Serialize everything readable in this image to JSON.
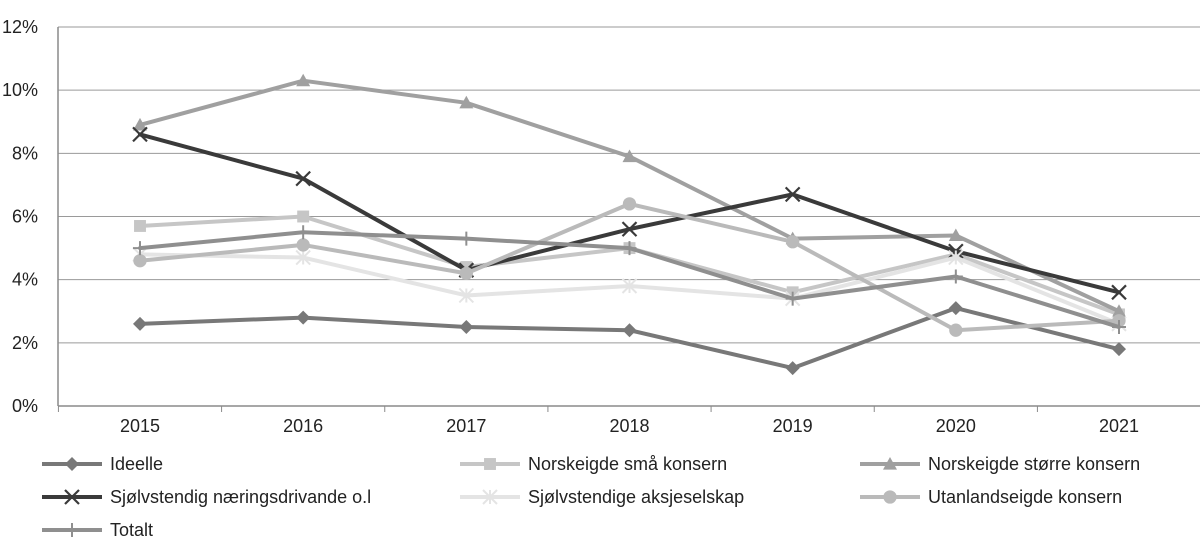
{
  "chart_data": {
    "type": "line",
    "title": "",
    "xlabel": "",
    "ylabel": "",
    "x": [
      "2015",
      "2016",
      "2017",
      "2018",
      "2019",
      "2020",
      "2021"
    ],
    "ylim": [
      0,
      12
    ],
    "yticks": [
      "0%",
      "2%",
      "4%",
      "6%",
      "8%",
      "10%",
      "12%"
    ],
    "grid": true,
    "legend_position": "bottom",
    "series": [
      {
        "name": "Ideelle",
        "values": [
          2.6,
          2.8,
          2.5,
          2.4,
          1.2,
          3.1,
          1.8
        ],
        "color": "#787878",
        "marker": "diamond"
      },
      {
        "name": "Norskeigde små konsern",
        "values": [
          5.7,
          6.0,
          4.4,
          5.0,
          3.6,
          4.8,
          2.9
        ],
        "color": "#c6c6c6",
        "marker": "square"
      },
      {
        "name": "Norskeigde større konsern",
        "values": [
          8.9,
          10.3,
          9.6,
          7.9,
          5.3,
          5.4,
          3.0
        ],
        "color": "#a0a0a0",
        "marker": "triangle"
      },
      {
        "name": "Sjølvstendig næringsdrivande o.l",
        "values": [
          8.6,
          7.2,
          4.3,
          5.6,
          6.7,
          4.9,
          3.6
        ],
        "color": "#3a3a3a",
        "marker": "x"
      },
      {
        "name": "Sjølvstendige aksjeselskap",
        "values": [
          4.8,
          4.7,
          3.5,
          3.8,
          3.4,
          4.7,
          2.6
        ],
        "color": "#e4e4e4",
        "marker": "star"
      },
      {
        "name": "Utanlandseigde konsern",
        "values": [
          4.6,
          5.1,
          4.2,
          6.4,
          5.2,
          2.4,
          2.7
        ],
        "color": "#bababa",
        "marker": "circle"
      },
      {
        "name": "Totalt",
        "values": [
          5.0,
          5.5,
          5.3,
          5.0,
          3.4,
          4.1,
          2.5
        ],
        "color": "#8f8f8f",
        "marker": "plus"
      }
    ]
  }
}
